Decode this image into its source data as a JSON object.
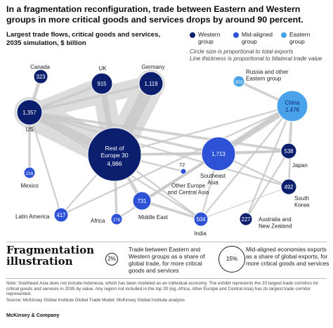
{
  "header": {
    "title": "In a fragmentation reconfiguration, trade between Eastern and Western groups in more critical goods and services drops by around 90 percent.",
    "subtitle": "Largest trade flows, critical goods and services, 2035 simulation, $ billion"
  },
  "legend": {
    "items": [
      {
        "label": "Western group",
        "color": "#0b1f6e"
      },
      {
        "label": "Mid-aligned group",
        "color": "#2e52d6"
      },
      {
        "label": "Eastern group",
        "color": "#4aa3ea"
      }
    ],
    "note_1": "Circle size is proportional to total exports",
    "note_2": "Line thickness is proportional to bilateral trade value"
  },
  "chart_data": {
    "type": "network",
    "title": "In a fragmentation reconfiguration, trade between Eastern and Western groups in more critical goods and services drops by around 90 percent.",
    "subtitle": "Largest trade flows, critical goods and services, 2035 simulation, $ billion",
    "nodes": [
      {
        "id": "us",
        "label": "US",
        "value": "1,357",
        "group": "Western",
        "color": "#0b1f6e"
      },
      {
        "id": "canada",
        "label": "Canada",
        "value": "323",
        "group": "Western",
        "color": "#0b1f6e"
      },
      {
        "id": "uk",
        "label": "UK",
        "value": "915",
        "group": "Western",
        "color": "#0b1f6e"
      },
      {
        "id": "germany",
        "label": "Germany",
        "value": "1,119",
        "group": "Western",
        "color": "#0b1f6e"
      },
      {
        "id": "roe30",
        "label": "Rest of Europe 30",
        "value": "4,986",
        "group": "Western",
        "color": "#0b1f6e"
      },
      {
        "id": "russia",
        "label": "Russia and other Eastern group",
        "value": "203",
        "group": "Eastern",
        "color": "#4aa3ea"
      },
      {
        "id": "china",
        "label": "China",
        "value": "1,476",
        "group": "Eastern",
        "color": "#4aa3ea"
      },
      {
        "id": "sea",
        "label": "Southeast Asia",
        "value": "1,713",
        "group": "Mid-aligned",
        "color": "#2e52d6"
      },
      {
        "id": "japan",
        "label": "Japan",
        "value": "538",
        "group": "Western",
        "color": "#0b1f6e"
      },
      {
        "id": "korea",
        "label": "South Korea",
        "value": "492",
        "group": "Western",
        "color": "#0b1f6e"
      },
      {
        "id": "mexico",
        "label": "Mexico",
        "value": "216",
        "group": "Mid-aligned",
        "color": "#2e52d6"
      },
      {
        "id": "other_eca",
        "label": "Other Europe and Central Asia",
        "value": "72",
        "group": "Mid-aligned",
        "color": "#2e52d6"
      },
      {
        "id": "latam",
        "label": "Latin America",
        "value": "417",
        "group": "Mid-aligned",
        "color": "#2e52d6"
      },
      {
        "id": "africa",
        "label": "Africa",
        "value": "276",
        "group": "Mid-aligned",
        "color": "#2e52d6"
      },
      {
        "id": "mideast",
        "label": "Middle East",
        "value": "731",
        "group": "Mid-aligned",
        "color": "#2e52d6"
      },
      {
        "id": "india",
        "label": "India",
        "value": "504",
        "group": "Mid-aligned",
        "color": "#2e52d6"
      },
      {
        "id": "aus_nz",
        "label": "Australia and New Zealand",
        "value": "227",
        "group": "Western",
        "color": "#0b1f6e"
      }
    ],
    "edges": [
      {
        "from": "us",
        "to": "roe30",
        "weight": 10
      },
      {
        "from": "uk",
        "to": "roe30",
        "weight": 7
      },
      {
        "from": "germany",
        "to": "roe30",
        "weight": 14
      },
      {
        "from": "us",
        "to": "canada",
        "weight": 4
      },
      {
        "from": "us",
        "to": "germany",
        "weight": 3
      },
      {
        "from": "us",
        "to": "uk",
        "weight": 3
      },
      {
        "from": "us",
        "to": "mexico",
        "weight": 3
      },
      {
        "from": "us",
        "to": "sea",
        "weight": 3
      },
      {
        "from": "us",
        "to": "japan",
        "weight": 3
      },
      {
        "from": "us",
        "to": "korea",
        "weight": 2
      },
      {
        "from": "us",
        "to": "india",
        "weight": 2
      },
      {
        "from": "us",
        "to": "latam",
        "weight": 2
      },
      {
        "from": "china",
        "to": "sea",
        "weight": 7
      },
      {
        "from": "china",
        "to": "russia",
        "weight": 3
      },
      {
        "from": "china",
        "to": "japan",
        "weight": 2
      },
      {
        "from": "china",
        "to": "korea",
        "weight": 2
      },
      {
        "from": "china",
        "to": "india",
        "weight": 2
      },
      {
        "from": "china",
        "to": "mideast",
        "weight": 2
      },
      {
        "from": "china",
        "to": "africa",
        "weight": 2
      },
      {
        "from": "china",
        "to": "latam",
        "weight": 2
      },
      {
        "from": "china",
        "to": "aus_nz",
        "weight": 2
      },
      {
        "from": "china",
        "to": "roe30",
        "weight": 2
      },
      {
        "from": "sea",
        "to": "roe30",
        "weight": 3
      },
      {
        "from": "sea",
        "to": "japan",
        "weight": 3
      },
      {
        "from": "sea",
        "to": "korea",
        "weight": 2
      },
      {
        "from": "sea",
        "to": "india",
        "weight": 2
      },
      {
        "from": "roe30",
        "to": "mideast",
        "weight": 4
      },
      {
        "from": "roe30",
        "to": "africa",
        "weight": 3
      },
      {
        "from": "roe30",
        "to": "india",
        "weight": 2
      },
      {
        "from": "roe30",
        "to": "latam",
        "weight": 2
      },
      {
        "from": "roe30",
        "to": "other_eca",
        "weight": 2
      },
      {
        "from": "roe30",
        "to": "japan",
        "weight": 2
      },
      {
        "from": "mideast",
        "to": "india",
        "weight": 3
      },
      {
        "from": "mideast",
        "to": "sea",
        "weight": 2
      },
      {
        "from": "japan",
        "to": "aus_nz",
        "weight": 2
      },
      {
        "from": "korea",
        "to": "india",
        "weight": 1
      }
    ]
  },
  "fragmentation": {
    "title": "Fragmentation illustration",
    "item_1_value": "2%",
    "item_1_text": "Trade between Eastern and Western groups as a share of global trade, for more critical goods and services",
    "item_2_value": "15%",
    "item_2_text": "Mid-aligned economies exports as a share of global exports, for more critical goods and services"
  },
  "footer": {
    "note": "Note: Southeast Asia does not include Indonesia, which has been modeled as an individual economy. The exhibit represents the 20 largest trade corridors for critical goods and services in 2035 by value. Any region not included in the top 20 (eg, Africa, other Europe and Central Asia) has its largest trade corridor represented.",
    "source": "Source: McKinsey Global Institute Global Trade Model; McKinsey Global Institute analysis",
    "brand": "McKinsey & Company"
  }
}
